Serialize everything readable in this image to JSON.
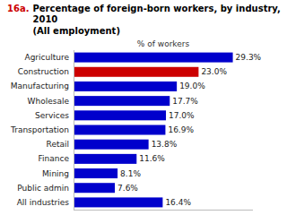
{
  "chart_data": {
    "type": "bar",
    "orientation": "horizontal",
    "title": "Percentage of foreign-born workers, by industry, 2010",
    "subtitle": "(All employment)",
    "annotations": [
      {
        "text": "16a.",
        "color": "#cc0000"
      }
    ],
    "x_label": "% of workers",
    "categories": [
      "Agriculture",
      "Construction",
      "Manufacturing",
      "Wholesale",
      "Services",
      "Transportation",
      "Retail",
      "Finance",
      "Mining",
      "Public admin",
      "All industries"
    ],
    "values": [
      29.3,
      23.0,
      19.0,
      17.7,
      17.0,
      16.9,
      13.8,
      11.6,
      8.1,
      7.6,
      16.4
    ],
    "value_labels": [
      "29.3%",
      "23.0%",
      "19.0%",
      "17.7%",
      "17.0%",
      "16.9%",
      "13.8%",
      "11.6%",
      "8.1%",
      "7.6%",
      "16.4%"
    ],
    "colors": [
      "#0000cc",
      "#cc0000",
      "#0000cc",
      "#0000cc",
      "#0000cc",
      "#0000cc",
      "#0000cc",
      "#0000cc",
      "#0000cc",
      "#0000cc",
      "#0000cc"
    ],
    "xlim": [
      0,
      33
    ],
    "data_labels": true,
    "tick_labels": "y",
    "grid": false
  }
}
